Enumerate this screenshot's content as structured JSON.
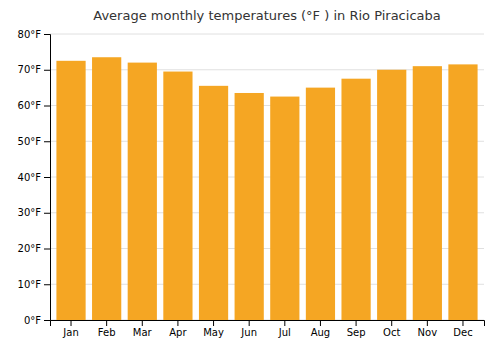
{
  "chart_data": {
    "type": "bar",
    "title": "Average monthly temperatures (°F ) in Rio Piracicaba",
    "categories": [
      "Jan",
      "Feb",
      "Mar",
      "Apr",
      "May",
      "Jun",
      "Jul",
      "Aug",
      "Sep",
      "Oct",
      "Nov",
      "Dec"
    ],
    "values": [
      72.5,
      73.5,
      72.0,
      69.5,
      65.5,
      63.5,
      62.5,
      65.0,
      67.5,
      70.0,
      71.0,
      71.5
    ],
    "color": "#F5A623",
    "ylim": [
      0,
      80
    ],
    "yticks": [
      {
        "value": 0,
        "label": "0°F"
      },
      {
        "value": 10,
        "label": "10°F"
      },
      {
        "value": 20,
        "label": "20°F"
      },
      {
        "value": 30,
        "label": "30°F"
      },
      {
        "value": 40,
        "label": "40°F"
      },
      {
        "value": 50,
        "label": "50°F"
      },
      {
        "value": 60,
        "label": "60°F"
      },
      {
        "value": 70,
        "label": "70°F"
      },
      {
        "value": 80,
        "label": "80°F"
      }
    ],
    "grid": true
  }
}
